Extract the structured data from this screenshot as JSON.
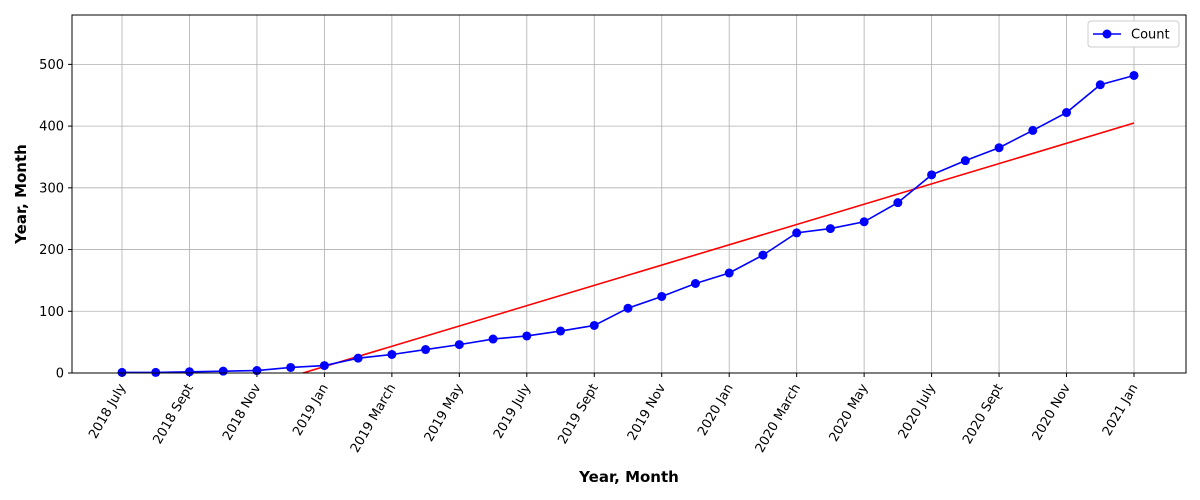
{
  "chart_data": {
    "type": "line",
    "xlabel": "Year, Month",
    "ylabel": "Year, Month",
    "ylim": [
      0,
      580
    ],
    "yticks": [
      0,
      100,
      200,
      300,
      400,
      500
    ],
    "grid": true,
    "legend_position": "top-right",
    "x": [
      "2018-07",
      "2018-08",
      "2018-09",
      "2018-10",
      "2018-11",
      "2018-12",
      "2019-01",
      "2019-02",
      "2019-03",
      "2019-04",
      "2019-05",
      "2019-06",
      "2019-07",
      "2019-08",
      "2019-09",
      "2019-10",
      "2019-11",
      "2019-12",
      "2020-01",
      "2020-02",
      "2020-03",
      "2020-04",
      "2020-05",
      "2020-06",
      "2020-07",
      "2020-08",
      "2020-09",
      "2020-10",
      "2020-11",
      "2020-12",
      "2021-01"
    ],
    "xtick_labels": [
      "2018  July",
      "2018  Sept",
      "2018  Nov",
      "2019  Jan",
      "2019  March",
      "2019  May",
      "2019  July",
      "2019  Sept",
      "2019  Nov",
      "2020  Jan",
      "2020  March",
      "2020  May",
      "2020  July",
      "2020  Sept",
      "2020  Nov",
      "2021  Jan"
    ],
    "series": [
      {
        "name": "Count",
        "color": "#0000ff",
        "marker": "circle",
        "values": [
          1,
          1,
          2,
          3,
          4,
          9,
          12,
          24,
          30,
          38,
          46,
          55,
          60,
          68,
          77,
          105,
          124,
          145,
          162,
          191,
          227,
          234,
          245,
          276,
          321,
          344,
          365,
          393,
          422,
          467,
          482
        ]
      }
    ],
    "trend_line": {
      "color": "#ff0000",
      "start": {
        "x": "2018-12",
        "y": -6
      },
      "end": {
        "x": "2021-01",
        "y": 405
      }
    }
  }
}
